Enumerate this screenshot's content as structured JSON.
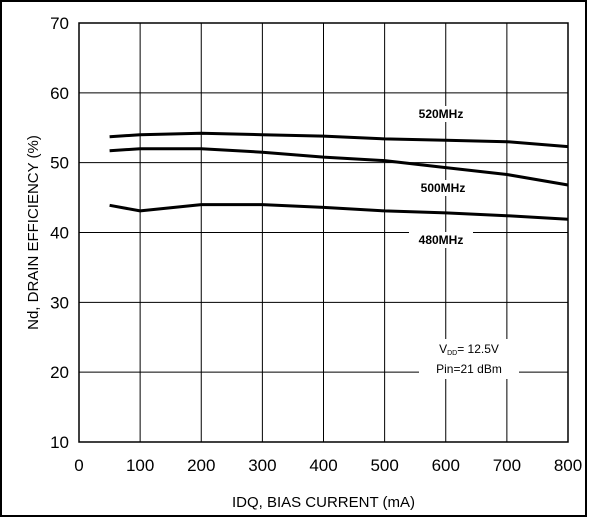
{
  "chart_data": {
    "type": "line",
    "xlabel": "IDQ, BIAS CURRENT (mA)",
    "ylabel": "Nd, DRAIN EFFICIENCY (%)",
    "xlim": [
      0,
      800
    ],
    "ylim": [
      10,
      70
    ],
    "xticks": [
      "0",
      "100",
      "200",
      "300",
      "400",
      "500",
      "600",
      "700",
      "800"
    ],
    "yticks": [
      "10",
      "20",
      "30",
      "40",
      "50",
      "60",
      "70"
    ],
    "grid": true,
    "series": [
      {
        "name": "520MHz",
        "x": [
          50,
          100,
          200,
          300,
          400,
          500,
          600,
          700,
          800
        ],
        "y": [
          53.7,
          54.0,
          54.2,
          54.0,
          53.8,
          53.4,
          53.2,
          53.0,
          52.3
        ]
      },
      {
        "name": "500MHz",
        "x": [
          50,
          100,
          200,
          300,
          400,
          500,
          600,
          700,
          800
        ],
        "y": [
          51.7,
          52.0,
          52.0,
          51.5,
          50.8,
          50.3,
          49.3,
          48.3,
          46.8
        ]
      },
      {
        "name": "480MHz",
        "x": [
          50,
          100,
          200,
          300,
          400,
          500,
          600,
          700,
          800
        ],
        "y": [
          43.9,
          43.1,
          44.0,
          44.0,
          43.6,
          43.1,
          42.8,
          42.4,
          41.9
        ]
      }
    ],
    "conditions": {
      "vdd_prefix": "V",
      "vdd_sub": "DD",
      "vdd_value": "= 12.5V",
      "pin": "Pin=21 dBm"
    }
  }
}
